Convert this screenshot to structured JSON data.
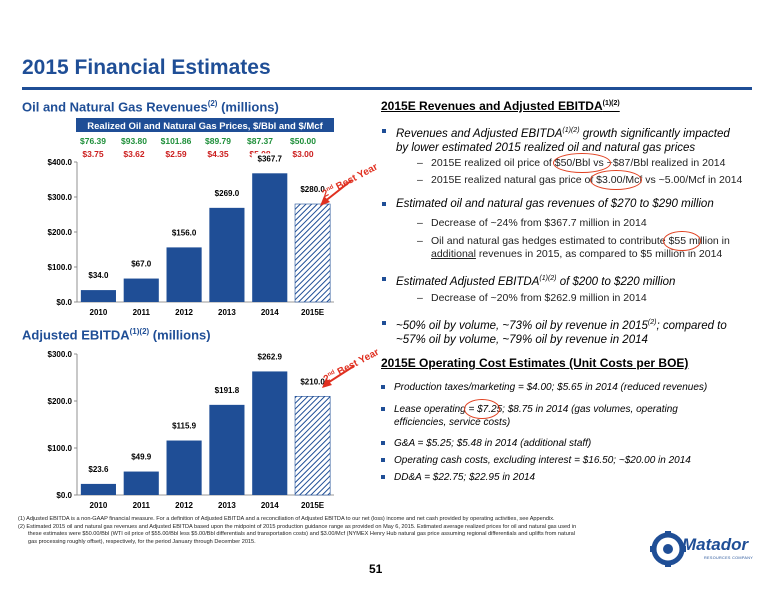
{
  "page_title": "2015 Financial Estimates",
  "page_number": "51",
  "left": {
    "revenue_heading": "Oil and Natural Gas Revenues",
    "revenue_heading_sup": "(2)",
    "revenue_heading_suffix": " (millions)",
    "ebitda_heading": "Adjusted EBITDA",
    "ebitda_heading_sup": "(1)(2)",
    "ebitda_heading_suffix": " (millions)"
  },
  "price_table": {
    "header": "Realized Oil and Natural Gas Prices, $/Bbl and $/Mcf",
    "oil_prices": [
      "$76.39",
      "$93.80",
      "$101.86",
      "$89.79",
      "$87.37",
      "$50.00"
    ],
    "gas_prices": [
      "$3.75",
      "$3.62",
      "$2.59",
      "$4.35",
      "$5.08",
      "$3.00"
    ],
    "oil_color": "#1e8f3a",
    "gas_color": "#cc1f1f"
  },
  "annotation": {
    "label_sup": "nd",
    "label_num": "2",
    "label_text": " Best Year",
    "color": "#e03020"
  },
  "chart_data": [
    {
      "type": "bar",
      "title": "Oil and Natural Gas Revenues(2) (millions)",
      "categories": [
        "2010",
        "2011",
        "2012",
        "2013",
        "2014",
        "2015E"
      ],
      "values": [
        34.0,
        67.0,
        156.0,
        269.0,
        367.7,
        280.0
      ],
      "value_labels": [
        "$34.0",
        "$67.0",
        "$156.0",
        "$269.0",
        "$367.7",
        "$280.0"
      ],
      "yticks": [
        "$0.0",
        "$100.0",
        "$200.0",
        "$300.0",
        "$400.0"
      ],
      "ylim": [
        0,
        400
      ],
      "bar_color": "#1f4e96",
      "estimate_pattern": "hatched"
    },
    {
      "type": "bar",
      "title": "Adjusted EBITDA(1)(2) (millions)",
      "categories": [
        "2010",
        "2011",
        "2012",
        "2013",
        "2014",
        "2015E"
      ],
      "values": [
        23.6,
        49.9,
        115.9,
        191.8,
        262.9,
        210.0
      ],
      "value_labels": [
        "$23.6",
        "$49.9",
        "$115.9",
        "$191.8",
        "$262.9",
        "$210.0"
      ],
      "yticks": [
        "$0.0",
        "$100.0",
        "$200.0",
        "$300.0"
      ],
      "ylim": [
        0,
        300
      ],
      "bar_color": "#1f4e96",
      "estimate_pattern": "hatched"
    }
  ],
  "right": {
    "sec1_heading": "2015E Revenues and Adjusted EBITDA",
    "sec1_heading_sup": "(1)(2)",
    "b1_line1a": "Revenues and Adjusted EBITDA",
    "b1_line1sup": "(1)(2)",
    "b1_line1b": " growth significantly impacted",
    "b1_line2": "by lower estimated 2015 realized oil and natural gas prices",
    "b1_s1": "2015E realized oil price of $50/Bbl vs ~$87/Bbl realized in 2014",
    "b1_s2": "2015E realized natural gas price of $3.00/Mcf vs ~5.00/Mcf in 2014",
    "b2": "Estimated oil and natural gas revenues of $270 to $290 million",
    "b2_s1": "Decrease of ~24% from $367.7 million in 2014",
    "b2_s2_line1": "Oil and natural gas hedges estimated to contribute $55 million in",
    "b2_s2_line2a": "additional",
    "b2_s2_line2b": " revenues in 2015, as compared to $5 million in 2014",
    "b3a": "Estimated Adjusted EBITDA",
    "b3sup": "(1)(2)",
    "b3b": " of $200 to $220 million",
    "b3_s1": "Decrease of ~20% from $262.9 million in 2014",
    "b4_line1a": "~50% oil by volume, ~73% oil by revenue in 2015",
    "b4_line1sup": "(2)",
    "b4_line1b": "; compared to",
    "b4_line2": "~57% oil by volume, ~79% oil by revenue in 2014",
    "sec2_heading": "2015E Operating Cost Estimates (Unit Costs per BOE)",
    "c1": "Production taxes/marketing = $4.00; $5.65 in 2014 (reduced revenues)",
    "c2_line1": "Lease operating = $7.25; $8.75 in 2014 (gas volumes, operating",
    "c2_line2": "efficiencies, service costs)",
    "c3": "G&A = $5.25; $5.48 in 2014 (additional staff)",
    "c4": "Operating cash costs, excluding interest = $16.50; ~$20.00 in 2014",
    "c5": "DD&A = $22.75; $22.95 in 2014"
  },
  "footnotes": {
    "n1": "(1)    Adjusted EBITDA is a non-GAAP financial measure. For a definition of Adjusted EBITDA and a reconciliation of Adjusted EBITDA to our net (loss) income and net cash provided by operating activities, see Appendix.",
    "n2a": "(2)    Estimated 2015 oil and natural gas revenues and Adjusted EBITDA based upon the midpoint of 2015 production guidance range as provided on May 6, 2015. Estimated average realized prices for oil and natural gas used in",
    "n2b": "these estimates were $50.00/Bbl (WTI oil price of $55.00/Bbl less $5.00/Bbl differentials and transportation costs) and $3.00/Mcf (NYMEX Henry Hub natural gas price assuming regional differentials and uplifts from natural",
    "n2c": "gas processing roughly offset), respectively, for the period January through December 2015."
  },
  "logo": {
    "brand": "Matador",
    "sub": "RESOURCES COMPANY"
  }
}
